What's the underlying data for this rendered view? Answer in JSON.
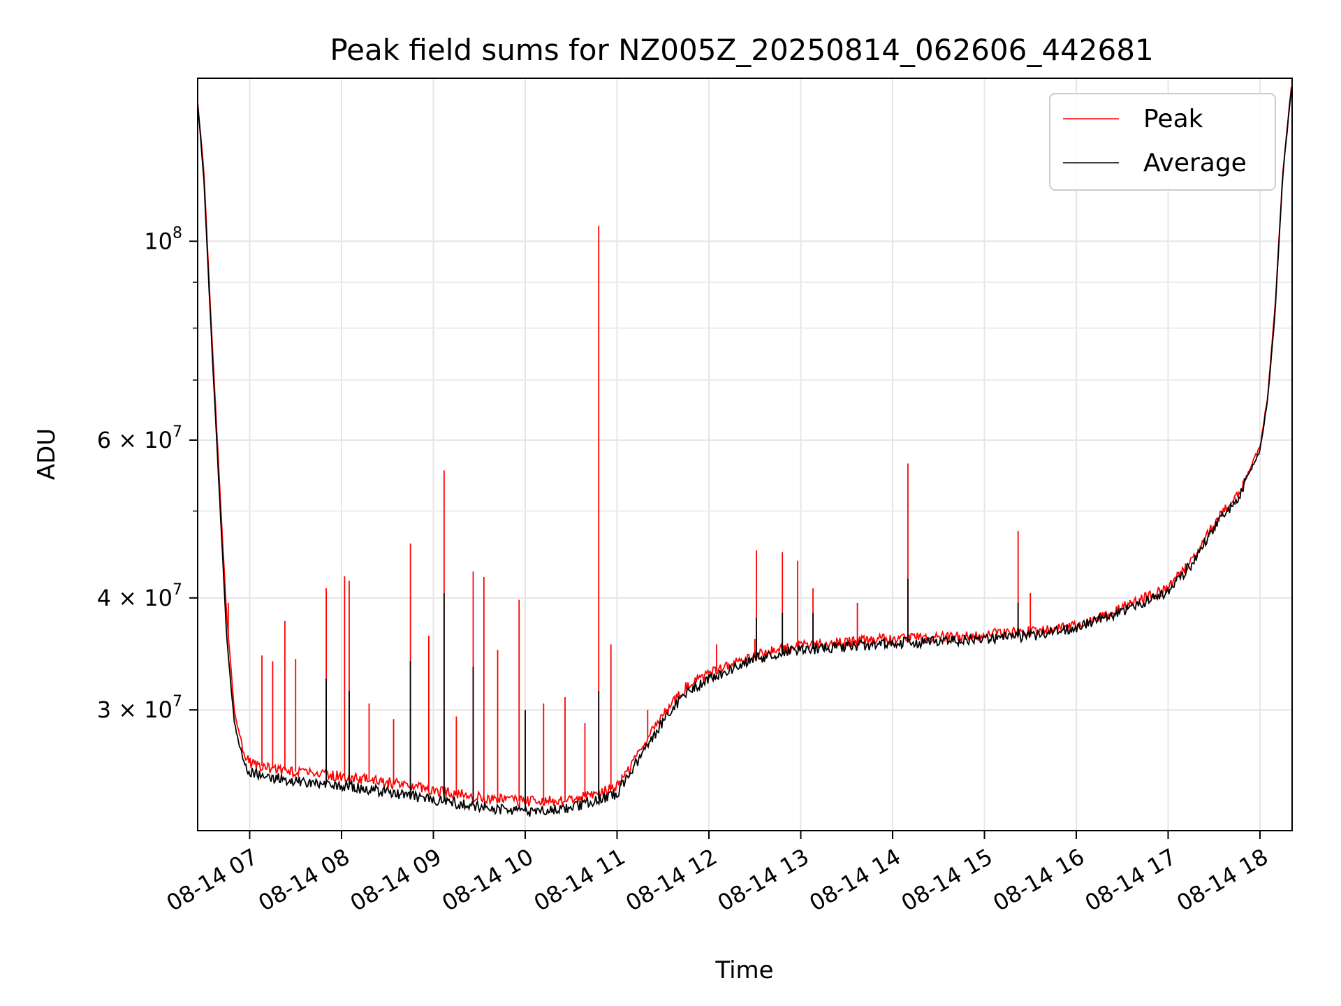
{
  "chart_data": {
    "type": "line",
    "title": "Peak field sums for NZ005Z_20250814_062606_442681",
    "xlabel": "Time",
    "ylabel": "ADU",
    "xlim": [
      "2025-08-14 06:26",
      "2025-08-14 18:21"
    ],
    "ylim": [
      22000000,
      152000000
    ],
    "yscale": "log",
    "grid": true,
    "legend_position": "top-right",
    "x_ticks": [
      "2025-08-14 07:00",
      "2025-08-14 08:00",
      "2025-08-14 09:00",
      "2025-08-14 10:00",
      "2025-08-14 11:00",
      "2025-08-14 12:00",
      "2025-08-14 13:00",
      "2025-08-14 14:00",
      "2025-08-14 15:00",
      "2025-08-14 16:00",
      "2025-08-14 17:00",
      "2025-08-14 18:00"
    ],
    "x_tick_labels": [
      "08-14 07",
      "08-14 08",
      "08-14 09",
      "08-14 10",
      "08-14 11",
      "08-14 12",
      "08-14 13",
      "08-14 14",
      "08-14 15",
      "08-14 16",
      "08-14 17",
      "08-14 18"
    ],
    "y_major_ticks": [
      30000000,
      40000000,
      60000000,
      100000000
    ],
    "y_major_labels": [
      {
        "base": "3 × 10",
        "exp": "7"
      },
      {
        "base": "4 × 10",
        "exp": "7"
      },
      {
        "base": "6 × 10",
        "exp": "7"
      },
      {
        "base": "10",
        "exp": "8"
      }
    ],
    "y_minor_ticks": [
      50000000,
      70000000,
      80000000,
      90000000
    ],
    "series": [
      {
        "name": "Peak",
        "color": "#ff0000",
        "x": [
          "2025-08-14 06:26",
          "2025-08-14 06:30",
          "2025-08-14 06:35",
          "2025-08-14 06:40",
          "2025-08-14 06:45",
          "2025-08-14 06:50",
          "2025-08-14 06:55",
          "2025-08-14 07:00",
          "2025-08-14 07:15",
          "2025-08-14 07:30",
          "2025-08-14 08:00",
          "2025-08-14 08:30",
          "2025-08-14 09:00",
          "2025-08-14 09:30",
          "2025-08-14 10:00",
          "2025-08-14 10:30",
          "2025-08-14 11:00",
          "2025-08-14 11:15",
          "2025-08-14 11:30",
          "2025-08-14 11:45",
          "2025-08-14 12:00",
          "2025-08-14 12:30",
          "2025-08-14 13:00",
          "2025-08-14 13:30",
          "2025-08-14 14:00",
          "2025-08-14 14:30",
          "2025-08-14 15:00",
          "2025-08-14 15:30",
          "2025-08-14 16:00",
          "2025-08-14 16:30",
          "2025-08-14 17:00",
          "2025-08-14 17:15",
          "2025-08-14 17:30",
          "2025-08-14 17:45",
          "2025-08-14 18:00",
          "2025-08-14 18:05",
          "2025-08-14 18:10",
          "2025-08-14 18:15",
          "2025-08-14 18:21"
        ],
        "values": [
          143000000,
          120000000,
          80000000,
          55000000,
          38000000,
          30000000,
          27200000,
          26200000,
          25800000,
          25600000,
          25300000,
          24900000,
          24400000,
          24000000,
          23700000,
          23800000,
          24600000,
          27000000,
          29600000,
          31800000,
          32900000,
          34600000,
          35400000,
          35700000,
          36000000,
          36200000,
          36400000,
          36700000,
          37300000,
          39000000,
          41000000,
          44000000,
          48500000,
          52000000,
          59000000,
          67000000,
          85000000,
          120000000,
          152000000
        ],
        "spikes": [
          {
            "x": "2025-08-14 06:46",
            "y": 39500000
          },
          {
            "x": "2025-08-14 07:08",
            "y": 34500000
          },
          {
            "x": "2025-08-14 07:15",
            "y": 34000000
          },
          {
            "x": "2025-08-14 07:23",
            "y": 37700000
          },
          {
            "x": "2025-08-14 07:30",
            "y": 34200000
          },
          {
            "x": "2025-08-14 07:50",
            "y": 41000000
          },
          {
            "x": "2025-08-14 08:02",
            "y": 42300000
          },
          {
            "x": "2025-08-14 08:05",
            "y": 41800000
          },
          {
            "x": "2025-08-14 08:18",
            "y": 30500000
          },
          {
            "x": "2025-08-14 08:34",
            "y": 29300000
          },
          {
            "x": "2025-08-14 08:45",
            "y": 46000000
          },
          {
            "x": "2025-08-14 08:57",
            "y": 36300000
          },
          {
            "x": "2025-08-14 09:07",
            "y": 55500000
          },
          {
            "x": "2025-08-14 09:15",
            "y": 29500000
          },
          {
            "x": "2025-08-14 09:26",
            "y": 42800000
          },
          {
            "x": "2025-08-14 09:33",
            "y": 42200000
          },
          {
            "x": "2025-08-14 09:42",
            "y": 35000000
          },
          {
            "x": "2025-08-14 09:56",
            "y": 39800000
          },
          {
            "x": "2025-08-14 10:12",
            "y": 30500000
          },
          {
            "x": "2025-08-14 10:26",
            "y": 31000000
          },
          {
            "x": "2025-08-14 10:39",
            "y": 29000000
          },
          {
            "x": "2025-08-14 10:48",
            "y": 104000000
          },
          {
            "x": "2025-08-14 10:56",
            "y": 35500000
          },
          {
            "x": "2025-08-14 11:20",
            "y": 30000000
          },
          {
            "x": "2025-08-14 12:05",
            "y": 35500000
          },
          {
            "x": "2025-08-14 12:30",
            "y": 36000000
          },
          {
            "x": "2025-08-14 12:31",
            "y": 45200000
          },
          {
            "x": "2025-08-14 12:48",
            "y": 45000000
          },
          {
            "x": "2025-08-14 12:58",
            "y": 44000000
          },
          {
            "x": "2025-08-14 13:08",
            "y": 41000000
          },
          {
            "x": "2025-08-14 13:37",
            "y": 39500000
          },
          {
            "x": "2025-08-14 14:10",
            "y": 56500000
          },
          {
            "x": "2025-08-14 15:22",
            "y": 47500000
          },
          {
            "x": "2025-08-14 15:30",
            "y": 40500000
          }
        ]
      },
      {
        "name": "Average",
        "color": "#000000",
        "x": [
          "2025-08-14 06:26",
          "2025-08-14 06:30",
          "2025-08-14 06:35",
          "2025-08-14 06:40",
          "2025-08-14 06:45",
          "2025-08-14 06:50",
          "2025-08-14 06:55",
          "2025-08-14 07:00",
          "2025-08-14 07:15",
          "2025-08-14 07:30",
          "2025-08-14 08:00",
          "2025-08-14 08:30",
          "2025-08-14 09:00",
          "2025-08-14 09:30",
          "2025-08-14 10:00",
          "2025-08-14 10:30",
          "2025-08-14 11:00",
          "2025-08-14 11:15",
          "2025-08-14 11:30",
          "2025-08-14 11:45",
          "2025-08-14 12:00",
          "2025-08-14 12:30",
          "2025-08-14 13:00",
          "2025-08-14 13:30",
          "2025-08-14 14:00",
          "2025-08-14 14:30",
          "2025-08-14 15:00",
          "2025-08-14 15:30",
          "2025-08-14 16:00",
          "2025-08-14 16:30",
          "2025-08-14 17:00",
          "2025-08-14 17:15",
          "2025-08-14 17:30",
          "2025-08-14 17:45",
          "2025-08-14 18:00",
          "2025-08-14 18:05",
          "2025-08-14 18:10",
          "2025-08-14 18:15",
          "2025-08-14 18:21"
        ],
        "values": [
          142000000,
          118000000,
          78000000,
          53000000,
          36000000,
          29000000,
          26500000,
          25600000,
          25200000,
          25000000,
          24700000,
          24300000,
          23800000,
          23400000,
          23100000,
          23300000,
          24200000,
          26600000,
          29100000,
          31400000,
          32500000,
          34200000,
          35000000,
          35300000,
          35600000,
          35800000,
          36000000,
          36300000,
          37000000,
          38700000,
          40600000,
          43600000,
          48000000,
          51500000,
          58500000,
          66500000,
          84000000,
          119000000,
          151000000
        ],
        "spikes": [
          {
            "x": "2025-08-14 07:50",
            "y": 32500000
          },
          {
            "x": "2025-08-14 08:05",
            "y": 31500000
          },
          {
            "x": "2025-08-14 08:45",
            "y": 34000000
          },
          {
            "x": "2025-08-14 09:07",
            "y": 40500000
          },
          {
            "x": "2025-08-14 09:26",
            "y": 33500000
          },
          {
            "x": "2025-08-14 10:00",
            "y": 30000000
          },
          {
            "x": "2025-08-14 10:48",
            "y": 31500000
          },
          {
            "x": "2025-08-14 12:31",
            "y": 38000000
          },
          {
            "x": "2025-08-14 12:48",
            "y": 38500000
          },
          {
            "x": "2025-08-14 13:08",
            "y": 38500000
          },
          {
            "x": "2025-08-14 14:10",
            "y": 42000000
          },
          {
            "x": "2025-08-14 15:22",
            "y": 39500000
          }
        ]
      }
    ]
  }
}
